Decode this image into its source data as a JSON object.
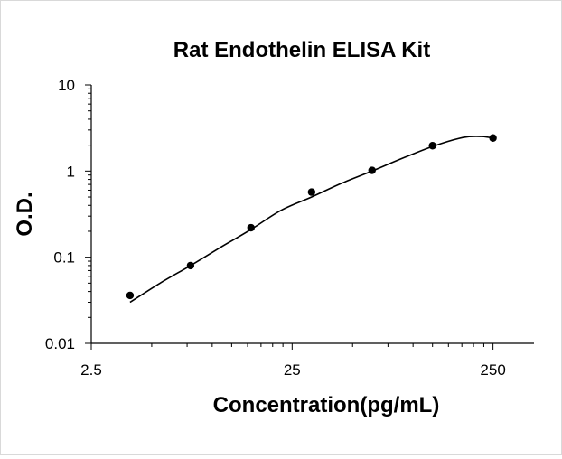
{
  "chart_data": {
    "type": "scatter",
    "title": "Rat Endothelin  ELISA Kit",
    "xlabel": "Concentration(pg/mL)",
    "ylabel": "O.D.",
    "x_scale": "log",
    "y_scale": "log",
    "xlim": [
      2.5,
      400
    ],
    "ylim": [
      0.01,
      10
    ],
    "x_ticks": [
      {
        "value": 2.5,
        "label": "2.5"
      },
      {
        "value": 25,
        "label": "25"
      },
      {
        "value": 250,
        "label": "250"
      }
    ],
    "y_ticks": [
      {
        "value": 0.01,
        "label": "0.01"
      },
      {
        "value": 0.1,
        "label": "0.1"
      },
      {
        "value": 1,
        "label": "1"
      },
      {
        "value": 10,
        "label": "10"
      }
    ],
    "grid": false,
    "legend": "none",
    "series": [
      {
        "x": [
          3.9,
          7.8,
          15.6,
          31.25,
          62.5,
          125,
          250
        ],
        "y": [
          0.036,
          0.08,
          0.22,
          0.57,
          1.02,
          1.97,
          2.42
        ],
        "color": "#000000"
      }
    ],
    "fit_curve": {
      "x": [
        3.9,
        5.5,
        7.8,
        11,
        15.6,
        22,
        31.25,
        44,
        62.5,
        88,
        125,
        177,
        220,
        250
      ],
      "y": [
        0.03,
        0.05,
        0.08,
        0.13,
        0.21,
        0.35,
        0.5,
        0.72,
        1.0,
        1.4,
        1.93,
        2.45,
        2.52,
        2.4
      ],
      "color": "#000000"
    }
  }
}
